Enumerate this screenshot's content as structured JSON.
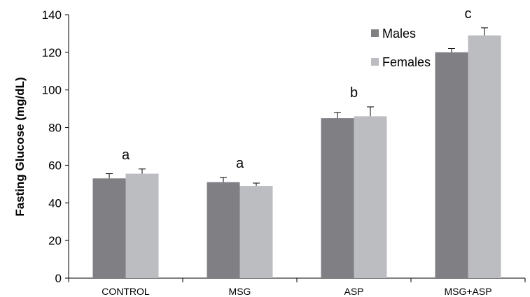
{
  "chart_data": {
    "type": "bar",
    "title": "",
    "xlabel": "",
    "ylabel": "Fasting Glucose (mg/dL)",
    "ylim": [
      0,
      140
    ],
    "yticks": [
      0,
      20,
      40,
      60,
      80,
      100,
      120,
      140
    ],
    "categories": [
      "CONTROL",
      "MSG",
      "ASP",
      "MSG+ASP"
    ],
    "series": [
      {
        "name": "Males",
        "color": "#7f7f84",
        "values": [
          53,
          51,
          85,
          120
        ],
        "errors": [
          2.5,
          2.5,
          3,
          2
        ]
      },
      {
        "name": "Females",
        "color": "#bcbdc1",
        "values": [
          55.5,
          49,
          86,
          129
        ],
        "errors": [
          2.5,
          1.5,
          5,
          4
        ]
      }
    ],
    "group_letters": [
      "a",
      "a",
      "b",
      "c"
    ],
    "legend_position": "top-right",
    "grid": false
  }
}
